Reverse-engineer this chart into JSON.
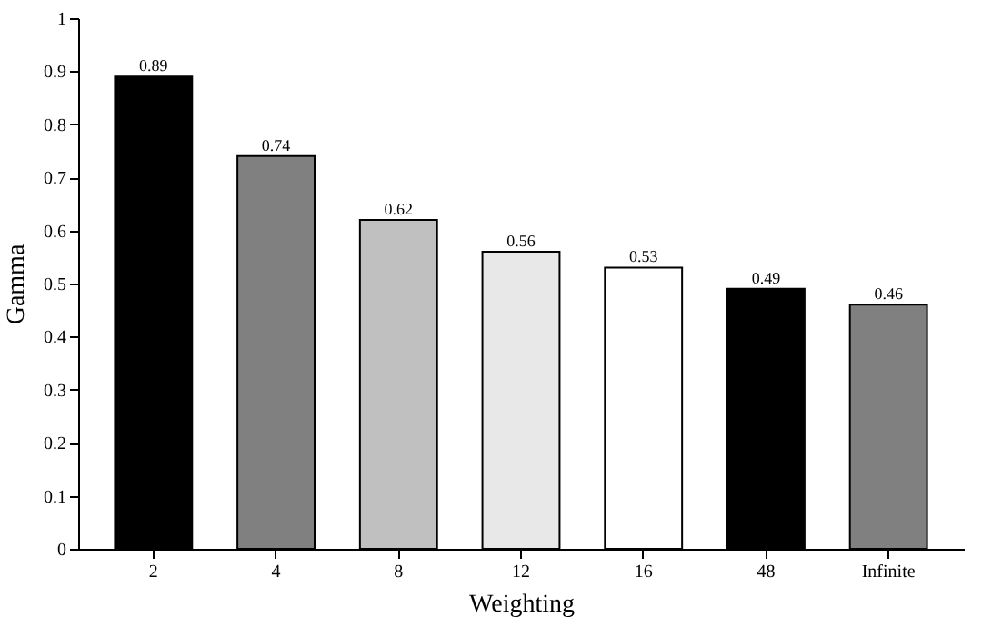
{
  "chart_data": {
    "type": "bar",
    "xlabel": "Weighting",
    "ylabel": "Gamma",
    "categories": [
      "2",
      "4",
      "8",
      "12",
      "16",
      "48",
      "Infinite"
    ],
    "values": [
      0.89,
      0.74,
      0.62,
      0.56,
      0.53,
      0.49,
      0.46
    ],
    "colors": [
      "#000000",
      "#808080",
      "#c0c0c0",
      "#e8e8e8",
      "#ffffff",
      "#000000",
      "#808080"
    ],
    "ylim": [
      0,
      1
    ],
    "yticks": [
      0,
      0.1,
      0.2,
      0.3,
      0.4,
      0.5,
      0.6,
      0.7,
      0.8,
      0.9,
      1
    ],
    "grid": false,
    "data_labels": true
  }
}
